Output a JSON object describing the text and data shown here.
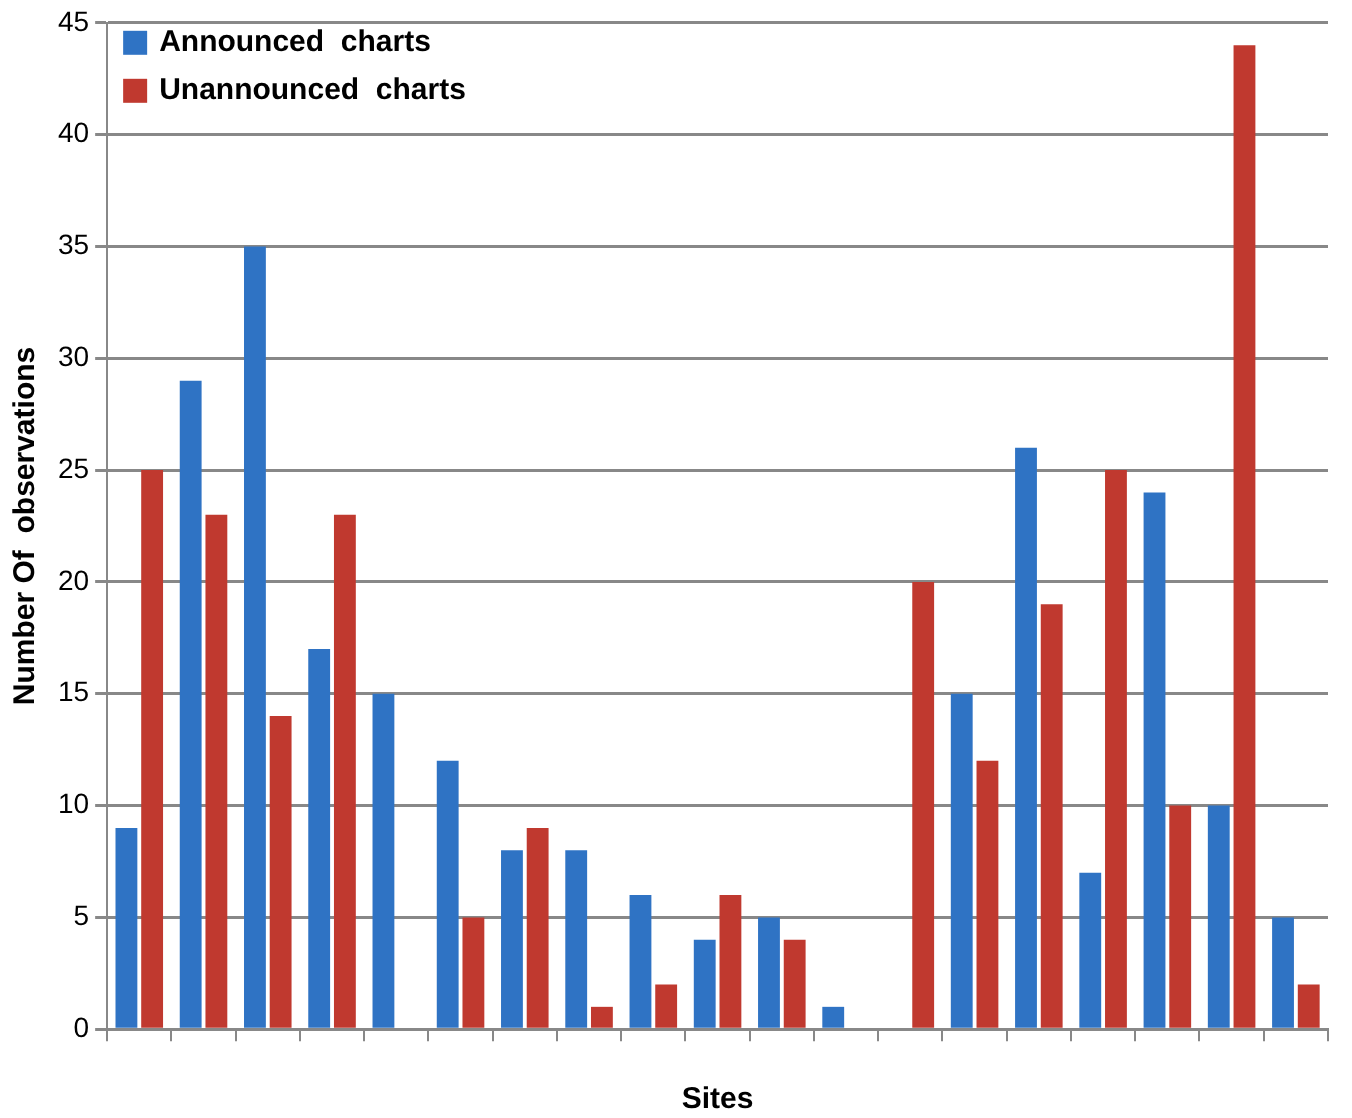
{
  "chart_data": {
    "type": "bar",
    "xlabel": "Sites",
    "ylabel": "Number Of  observations",
    "categories": [
      null,
      null,
      null,
      null,
      null,
      null,
      null,
      null,
      null,
      null,
      null,
      null,
      null,
      null,
      null,
      null,
      null,
      null,
      null
    ],
    "series": [
      {
        "name": "Announced  charts",
        "color": "#2f73c4",
        "values": [
          9,
          29,
          35,
          17,
          15,
          12,
          8,
          8,
          6,
          4,
          5,
          1,
          0,
          15,
          26,
          7,
          24,
          10,
          5
        ]
      },
      {
        "name": "Unannounced  charts",
        "color": "#c0392f",
        "values": [
          25,
          23,
          14,
          23,
          0,
          5,
          9,
          1,
          2,
          6,
          4,
          0,
          20,
          12,
          19,
          25,
          10,
          44,
          2
        ]
      }
    ],
    "ylim": [
      0,
      45
    ],
    "yticks": [
      0,
      5,
      10,
      15,
      20,
      25,
      30,
      35,
      40,
      45
    ],
    "grid": "y",
    "legend": "top left"
  }
}
